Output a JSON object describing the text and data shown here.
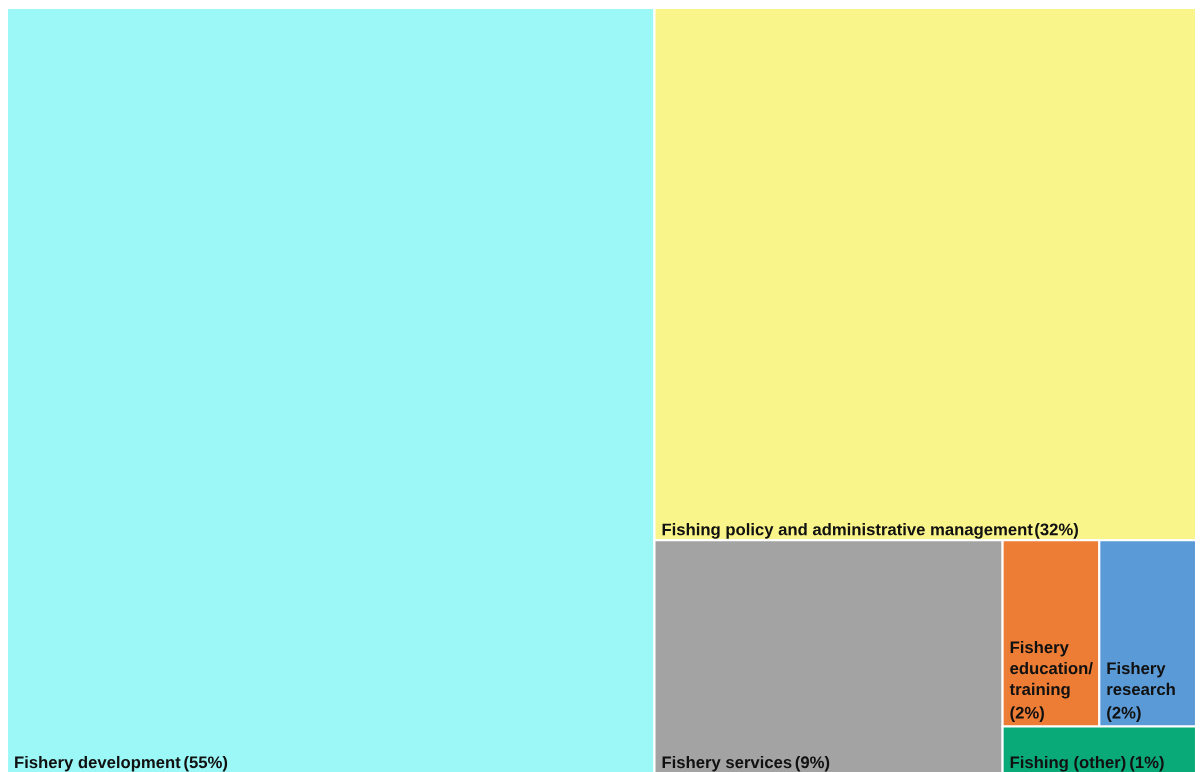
{
  "chart_data": {
    "type": "other",
    "categories": [
      "Fishery development",
      "Fishing policy and administrative management",
      "Fishery services",
      "Fishery education/training",
      "Fishery research",
      "Fishing (other)"
    ],
    "values": [
      55,
      32,
      9,
      2,
      2,
      1
    ],
    "colors": [
      "#9cf7f7",
      "#faf58a",
      "#a3a3a3",
      "#ed7d35",
      "#5a9ad6",
      "#0aaa78"
    ],
    "value_labels": [
      "(55%)",
      "(32%)",
      "(9%)",
      "(2%)",
      "(2%)",
      "(1%)"
    ]
  }
}
